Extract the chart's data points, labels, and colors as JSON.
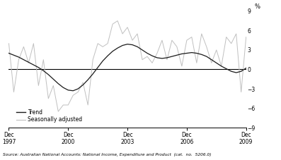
{
  "ylabel_right": "%",
  "source": "Source: Australian National Accounts: National Income, Expenditure and Product  (cat.  no.  5206.0)",
  "ylim": [
    -9,
    9
  ],
  "yticks": [
    -9,
    -6,
    -3,
    0,
    3,
    6,
    9
  ],
  "xtick_labels": [
    "Dec\n1997",
    "Dec\n2000",
    "Dec\n2003",
    "Dec\n2006",
    "Dec\n2009"
  ],
  "xtick_positions": [
    0,
    12,
    24,
    36,
    48
  ],
  "xlim": [
    0,
    48
  ],
  "legend_entries": [
    "Trend",
    "Seasonally adjusted"
  ],
  "trend_color": "#1a1a1a",
  "seasonal_color": "#c0c0c0",
  "trend_linewidth": 0.9,
  "seasonal_linewidth": 0.7,
  "background_color": "#ffffff",
  "trend": [
    2.5,
    2.2,
    1.9,
    1.5,
    1.1,
    0.7,
    0.3,
    -0.2,
    -0.8,
    -1.5,
    -2.2,
    -2.8,
    -3.2,
    -3.3,
    -3.0,
    -2.4,
    -1.6,
    -0.7,
    0.3,
    1.3,
    2.1,
    2.8,
    3.3,
    3.7,
    3.9,
    3.8,
    3.5,
    3.0,
    2.5,
    2.1,
    1.8,
    1.7,
    1.8,
    2.0,
    2.2,
    2.4,
    2.5,
    2.6,
    2.5,
    2.3,
    2.0,
    1.5,
    1.0,
    0.5,
    0.1,
    -0.3,
    -0.5,
    -0.3,
    0.2
  ],
  "seasonal": [
    4.0,
    -3.5,
    1.5,
    3.5,
    1.0,
    4.0,
    -2.5,
    1.5,
    -4.5,
    -2.5,
    -6.5,
    -5.5,
    -5.5,
    -4.0,
    -3.5,
    -2.0,
    -5.5,
    1.5,
    4.0,
    3.5,
    4.0,
    7.0,
    7.5,
    5.5,
    6.5,
    4.5,
    5.5,
    1.5,
    2.0,
    1.0,
    2.5,
    4.5,
    1.5,
    4.5,
    3.5,
    0.5,
    4.5,
    5.0,
    1.0,
    5.5,
    3.5,
    1.0,
    3.0,
    0.5,
    5.0,
    4.0,
    5.5,
    -3.5,
    5.0
  ]
}
